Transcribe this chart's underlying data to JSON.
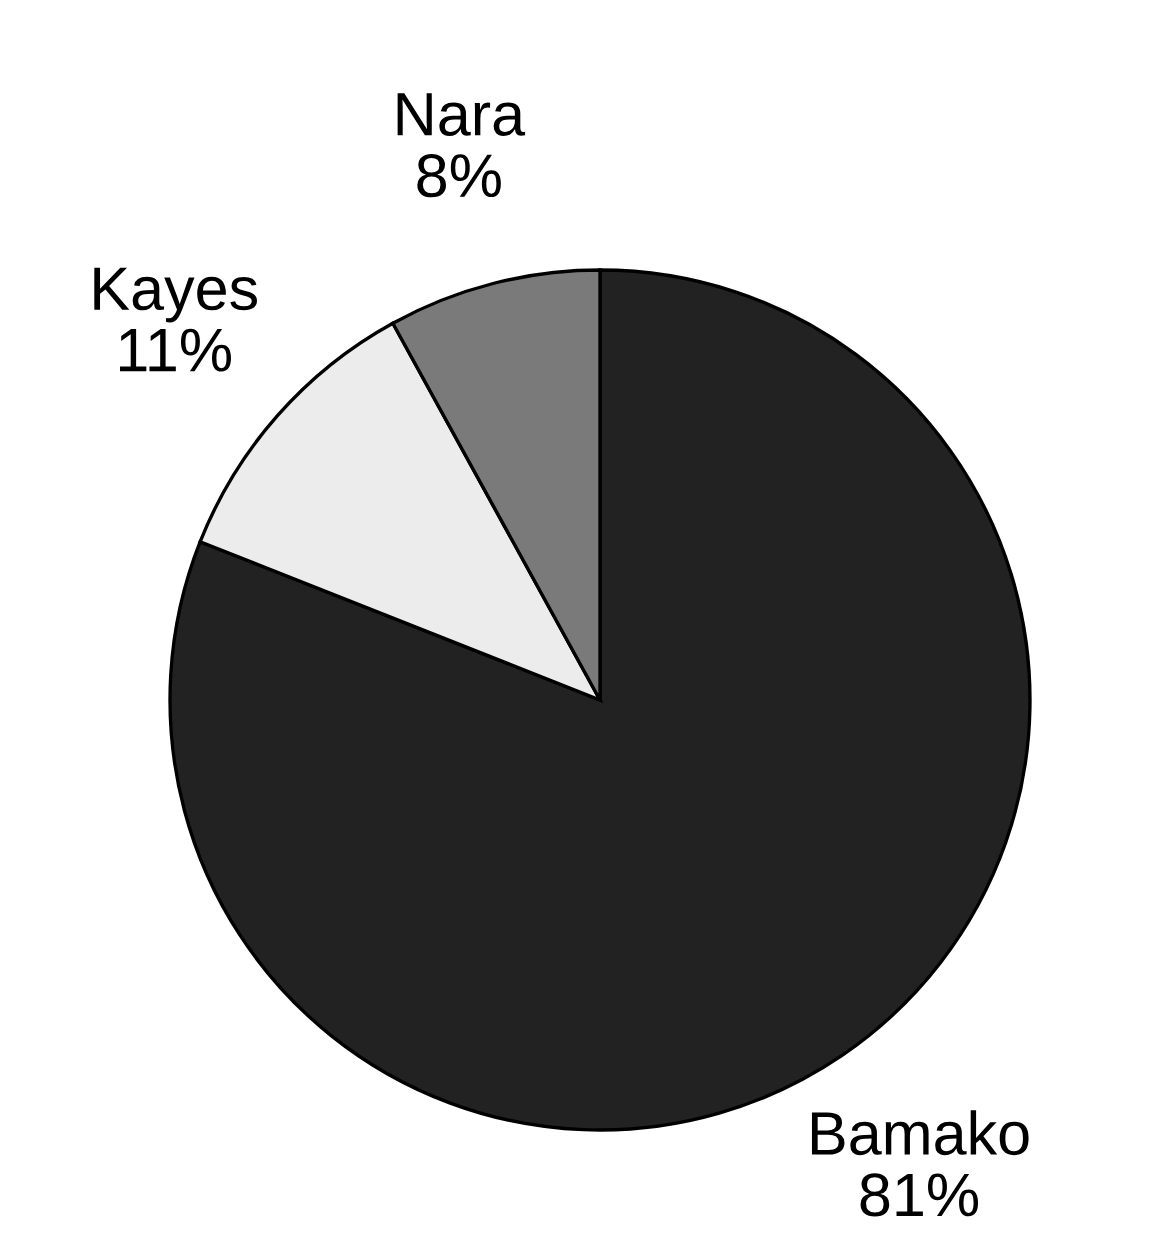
{
  "chart_data": {
    "type": "pie",
    "categories": [
      "Bamako",
      "Kayes",
      "Nara"
    ],
    "values": [
      81,
      11,
      8
    ],
    "value_labels": [
      "81%",
      "11%",
      "8%"
    ],
    "colors": [
      "#222222",
      "#ececec",
      "#7a7a7a"
    ]
  }
}
